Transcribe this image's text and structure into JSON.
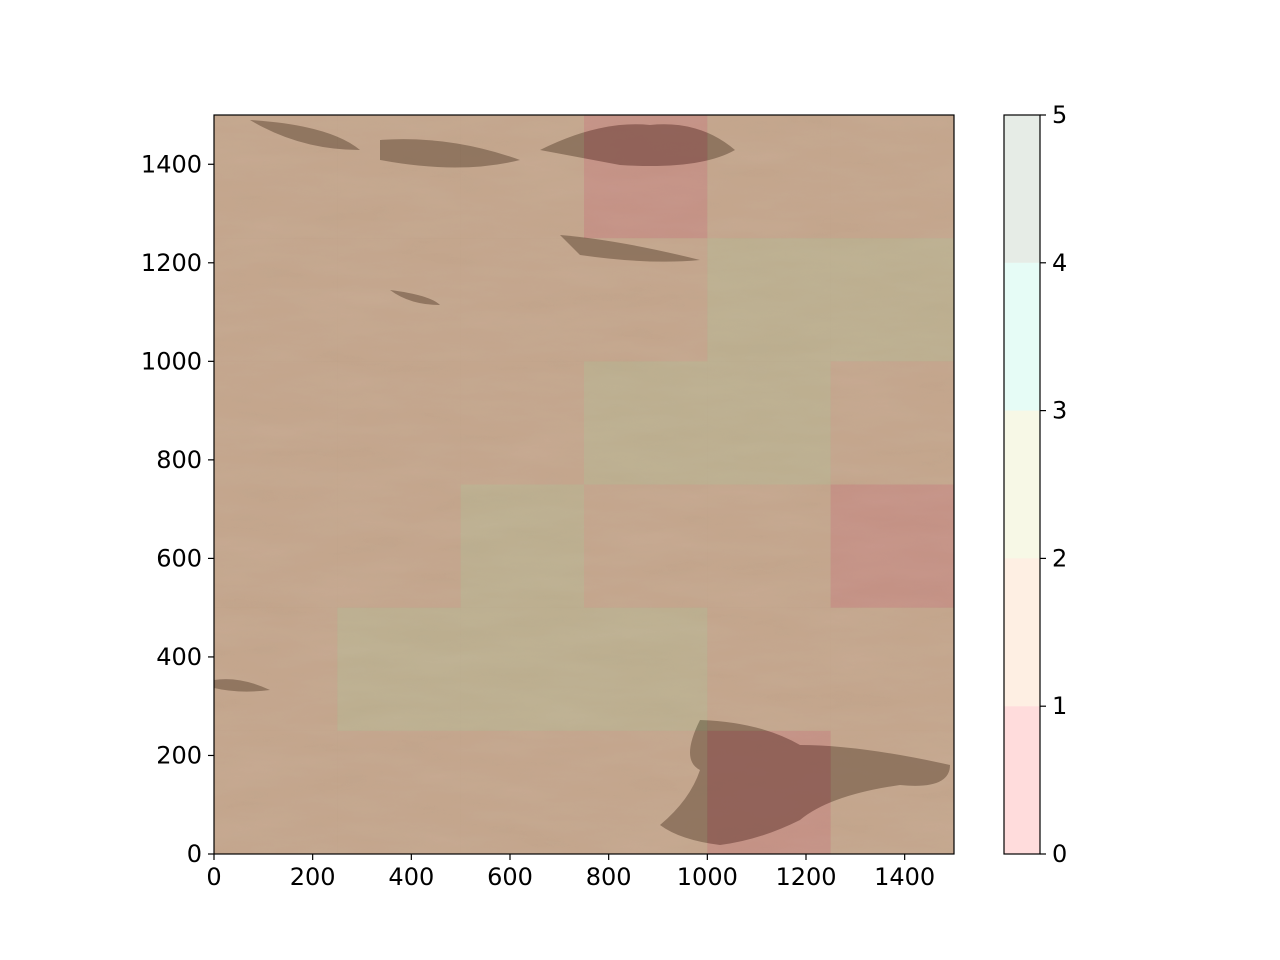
{
  "chart_data": {
    "type": "heatmap",
    "title": "",
    "xlabel": "",
    "ylabel": "",
    "xlim": [
      0,
      1500
    ],
    "ylim": [
      0,
      1500
    ],
    "xticks": [
      0,
      200,
      400,
      600,
      800,
      1000,
      1200,
      1400
    ],
    "yticks": [
      0,
      200,
      400,
      600,
      800,
      1000,
      1200,
      1400
    ],
    "xtick_labels": [
      "0",
      "200",
      "400",
      "600",
      "800",
      "1000",
      "1200",
      "1400"
    ],
    "ytick_labels": [
      "0",
      "200",
      "400",
      "600",
      "800",
      "1000",
      "1200",
      "1400"
    ],
    "background": "grayscale terrain image (sand dunes and rocky cliffs)",
    "tile_size": 250,
    "grid_origin": "bottom-left",
    "grid_rows_bottom_to_top": [
      [
        1,
        1,
        1,
        1,
        0,
        1
      ],
      [
        1,
        2,
        2,
        2,
        1,
        1
      ],
      [
        1,
        1,
        2,
        1,
        1,
        0
      ],
      [
        1,
        1,
        1,
        2,
        2,
        1
      ],
      [
        1,
        1,
        1,
        1,
        2,
        2
      ],
      [
        1,
        1,
        1,
        0,
        1,
        1
      ]
    ],
    "colorbar": {
      "range": [
        0,
        5
      ],
      "ticks": [
        0,
        1,
        2,
        3,
        4,
        5
      ],
      "tick_labels": [
        "0",
        "1",
        "2",
        "3",
        "4",
        "5"
      ],
      "class_colors": [
        "#ff9a9a",
        "#fcd2b0",
        "#e7eab8",
        "#b8f5e6",
        "#b6c9b6"
      ]
    },
    "overlay_alpha": 0.35
  }
}
